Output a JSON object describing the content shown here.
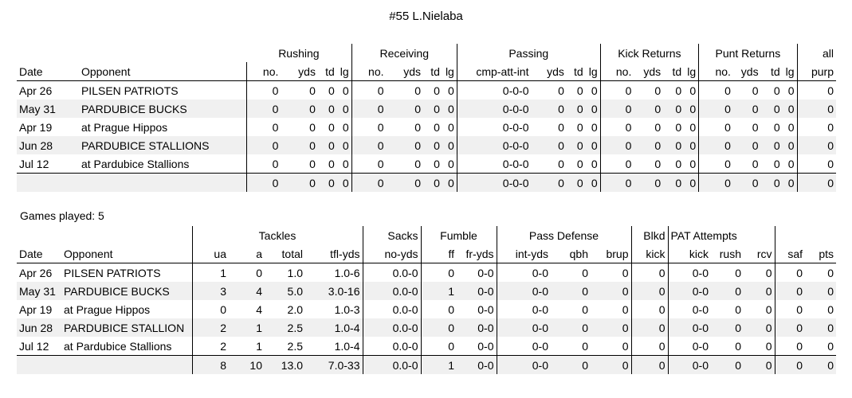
{
  "title": "#55 L.Nielaba",
  "games_played": "Games played: 5",
  "offense": {
    "groups": [
      "Rushing",
      "Receiving",
      "Passing",
      "Kick Returns",
      "Punt Returns",
      "all"
    ],
    "headers": [
      "Date",
      "Opponent",
      "no.",
      "yds",
      "td",
      "lg",
      "no.",
      "yds",
      "td",
      "lg",
      "cmp-att-int",
      "yds",
      "td",
      "lg",
      "no.",
      "yds",
      "td",
      "lg",
      "no.",
      "yds",
      "td",
      "lg",
      "purp"
    ],
    "rows": [
      [
        "Apr 26",
        "PILSEN PATRIOTS",
        "0",
        "0",
        "0",
        "0",
        "0",
        "0",
        "0",
        "0",
        "0-0-0",
        "0",
        "0",
        "0",
        "0",
        "0",
        "0",
        "0",
        "0",
        "0",
        "0",
        "0",
        "0"
      ],
      [
        "May 31",
        "PARDUBICE BUCKS",
        "0",
        "0",
        "0",
        "0",
        "0",
        "0",
        "0",
        "0",
        "0-0-0",
        "0",
        "0",
        "0",
        "0",
        "0",
        "0",
        "0",
        "0",
        "0",
        "0",
        "0",
        "0"
      ],
      [
        "Apr 19",
        "at Prague Hippos",
        "0",
        "0",
        "0",
        "0",
        "0",
        "0",
        "0",
        "0",
        "0-0-0",
        "0",
        "0",
        "0",
        "0",
        "0",
        "0",
        "0",
        "0",
        "0",
        "0",
        "0",
        "0"
      ],
      [
        "Jun 28",
        "PARDUBICE STALLIONS",
        "0",
        "0",
        "0",
        "0",
        "0",
        "0",
        "0",
        "0",
        "0-0-0",
        "0",
        "0",
        "0",
        "0",
        "0",
        "0",
        "0",
        "0",
        "0",
        "0",
        "0",
        "0"
      ],
      [
        "Jul 12",
        "at Pardubice Stallions",
        "0",
        "0",
        "0",
        "0",
        "0",
        "0",
        "0",
        "0",
        "0-0-0",
        "0",
        "0",
        "0",
        "0",
        "0",
        "0",
        "0",
        "0",
        "0",
        "0",
        "0",
        "0"
      ]
    ],
    "totals": [
      "",
      "",
      "0",
      "0",
      "0",
      "0",
      "0",
      "0",
      "0",
      "0",
      "0-0-0",
      "0",
      "0",
      "0",
      "0",
      "0",
      "0",
      "0",
      "0",
      "0",
      "0",
      "0",
      "0"
    ]
  },
  "defense": {
    "groups": [
      "Tackles",
      "Sacks",
      "Fumble",
      "Pass Defense",
      "Blkd",
      "PAT Attempts"
    ],
    "headers": [
      "Date",
      "Opponent",
      "ua",
      "a",
      "total",
      "tfl-yds",
      "no-yds",
      "ff",
      "fr-yds",
      "int-yds",
      "qbh",
      "brup",
      "kick",
      "kick",
      "rush",
      "rcv",
      "saf",
      "pts"
    ],
    "rows": [
      [
        "Apr 26",
        "PILSEN PATRIOTS",
        "1",
        "0",
        "1.0",
        "1.0-6",
        "0.0-0",
        "0",
        "0-0",
        "0-0",
        "0",
        "0",
        "0",
        "0-0",
        "0",
        "0",
        "0",
        "0"
      ],
      [
        "May 31",
        "PARDUBICE BUCKS",
        "3",
        "4",
        "5.0",
        "3.0-16",
        "0.0-0",
        "1",
        "0-0",
        "0-0",
        "0",
        "0",
        "0",
        "0-0",
        "0",
        "0",
        "0",
        "0"
      ],
      [
        "Apr 19",
        "at Prague Hippos",
        "0",
        "4",
        "2.0",
        "1.0-3",
        "0.0-0",
        "0",
        "0-0",
        "0-0",
        "0",
        "0",
        "0",
        "0-0",
        "0",
        "0",
        "0",
        "0"
      ],
      [
        "Jun 28",
        "PARDUBICE STALLION",
        "2",
        "1",
        "2.5",
        "1.0-4",
        "0.0-0",
        "0",
        "0-0",
        "0-0",
        "0",
        "0",
        "0",
        "0-0",
        "0",
        "0",
        "0",
        "0"
      ],
      [
        "Jul 12",
        "at Pardubice Stallions",
        "2",
        "1",
        "2.5",
        "1.0-4",
        "0.0-0",
        "0",
        "0-0",
        "0-0",
        "0",
        "0",
        "0",
        "0-0",
        "0",
        "0",
        "0",
        "0"
      ]
    ],
    "totals": [
      "",
      "",
      "8",
      "10",
      "13.0",
      "7.0-33",
      "0.0-0",
      "1",
      "0-0",
      "0-0",
      "0",
      "0",
      "0",
      "0-0",
      "0",
      "0",
      "0",
      "0"
    ]
  }
}
